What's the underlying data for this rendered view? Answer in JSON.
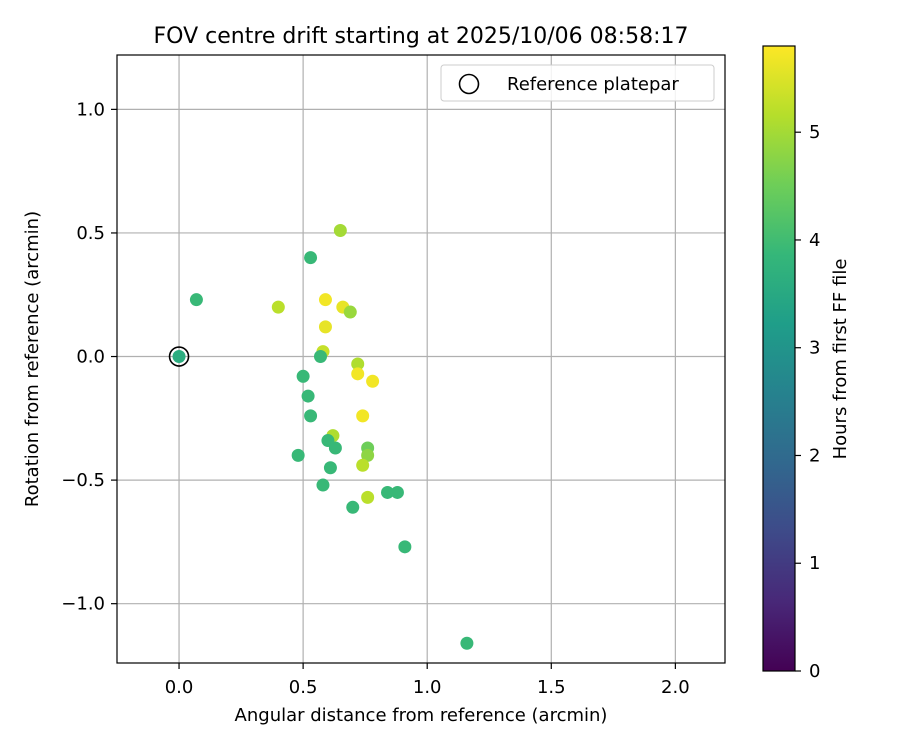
{
  "chart_data": {
    "type": "scatter",
    "title": "FOV centre drift starting at 2025/10/06 08:58:17",
    "xlabel": "Angular distance from reference (arcmin)",
    "ylabel": "Rotation from reference (arcmin)",
    "xlim": [
      -0.25,
      2.2
    ],
    "ylim": [
      -1.24,
      1.22
    ],
    "xticks": [
      0.0,
      0.5,
      1.0,
      1.5,
      2.0
    ],
    "xtick_labels": [
      "0.0",
      "0.5",
      "1.0",
      "1.5",
      "2.0"
    ],
    "yticks": [
      1.0,
      0.5,
      0.0,
      -0.5,
      -1.0
    ],
    "ytick_labels": [
      "1.0",
      "0.5",
      "0.0",
      "−0.5",
      "−1.0"
    ],
    "grid": true,
    "legend": {
      "position": "top-right",
      "label": "Reference platepar"
    },
    "reference_point": {
      "x": 0.0,
      "y": 0.0
    },
    "colorbar": {
      "label": "Hours from first FF file",
      "range": [
        0,
        5.8
      ],
      "ticks": [
        0,
        1,
        2,
        3,
        4,
        5
      ],
      "tick_labels": [
        "0",
        "1",
        "2",
        "3",
        "4",
        "5"
      ],
      "colormap": [
        "#440154",
        "#482878",
        "#3e4a89",
        "#31688e",
        "#26828e",
        "#1f9e89",
        "#35b779",
        "#6ece58",
        "#b5de2b",
        "#fde725"
      ]
    },
    "points": [
      {
        "x": 0.0,
        "y": 0.0,
        "h": 3.6
      },
      {
        "x": 0.07,
        "y": 0.23,
        "h": 3.9
      },
      {
        "x": 0.4,
        "y": 0.2,
        "h": 5.2
      },
      {
        "x": 0.53,
        "y": 0.4,
        "h": 3.9
      },
      {
        "x": 0.65,
        "y": 0.51,
        "h": 5.0
      },
      {
        "x": 0.59,
        "y": 0.23,
        "h": 5.7
      },
      {
        "x": 0.66,
        "y": 0.2,
        "h": 5.6
      },
      {
        "x": 0.69,
        "y": 0.18,
        "h": 4.9
      },
      {
        "x": 0.59,
        "y": 0.12,
        "h": 5.6
      },
      {
        "x": 0.58,
        "y": 0.02,
        "h": 5.3
      },
      {
        "x": 0.57,
        "y": 0.0,
        "h": 3.9
      },
      {
        "x": 0.72,
        "y": -0.03,
        "h": 5.1
      },
      {
        "x": 0.72,
        "y": -0.07,
        "h": 5.7
      },
      {
        "x": 0.78,
        "y": -0.1,
        "h": 5.7
      },
      {
        "x": 0.5,
        "y": -0.08,
        "h": 3.9
      },
      {
        "x": 0.52,
        "y": -0.16,
        "h": 3.9
      },
      {
        "x": 0.53,
        "y": -0.24,
        "h": 3.9
      },
      {
        "x": 0.74,
        "y": -0.24,
        "h": 5.7
      },
      {
        "x": 0.62,
        "y": -0.32,
        "h": 5.1
      },
      {
        "x": 0.6,
        "y": -0.34,
        "h": 3.9
      },
      {
        "x": 0.63,
        "y": -0.37,
        "h": 3.9
      },
      {
        "x": 0.76,
        "y": -0.37,
        "h": 4.5
      },
      {
        "x": 0.76,
        "y": -0.4,
        "h": 4.8
      },
      {
        "x": 0.48,
        "y": -0.4,
        "h": 3.9
      },
      {
        "x": 0.61,
        "y": -0.45,
        "h": 3.9
      },
      {
        "x": 0.74,
        "y": -0.44,
        "h": 5.2
      },
      {
        "x": 0.58,
        "y": -0.52,
        "h": 3.9
      },
      {
        "x": 0.84,
        "y": -0.55,
        "h": 3.9
      },
      {
        "x": 0.88,
        "y": -0.55,
        "h": 3.9
      },
      {
        "x": 0.76,
        "y": -0.57,
        "h": 5.2
      },
      {
        "x": 0.7,
        "y": -0.61,
        "h": 3.9
      },
      {
        "x": 0.91,
        "y": -0.77,
        "h": 3.9
      },
      {
        "x": 1.16,
        "y": -1.16,
        "h": 3.9
      }
    ]
  }
}
